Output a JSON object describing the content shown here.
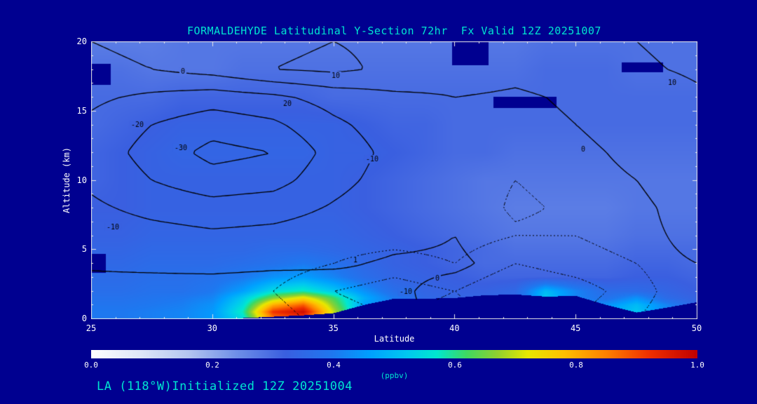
{
  "title": "FORMALDEHYDE Latitudinal Y-Section 72hr  Fx Valid 12Z 20251007",
  "caption": "LA (118°W)Initialized 12Z 20251004",
  "colors": {
    "background": "#000090",
    "title_text": "#00e5d0",
    "axis_text": "#ffffff",
    "contour_line": "#000000",
    "frame": "#e8e8e8"
  },
  "axes": {
    "x": {
      "label": "Latitude",
      "min": 25,
      "max": 50,
      "ticks": [
        25,
        30,
        35,
        40,
        45,
        50
      ]
    },
    "y": {
      "label": "Altitude (km)",
      "min": 0,
      "max": 20,
      "ticks": [
        0,
        5,
        10,
        15,
        20
      ]
    }
  },
  "colorbar": {
    "label": "(ppbv)",
    "ticks": [
      "0.0",
      "0.2",
      "0.4",
      "0.6",
      "0.8",
      "1.0"
    ],
    "min": 0,
    "max": 1,
    "stops": [
      [
        0.0,
        "#ffffff"
      ],
      [
        0.08,
        "#e0e8f8"
      ],
      [
        0.16,
        "#b4c6f0"
      ],
      [
        0.24,
        "#6f8fe8"
      ],
      [
        0.32,
        "#3a5fe0"
      ],
      [
        0.4,
        "#1e78f0"
      ],
      [
        0.46,
        "#00a0ff"
      ],
      [
        0.52,
        "#00c8f0"
      ],
      [
        0.57,
        "#00e8d0"
      ],
      [
        0.62,
        "#40d860"
      ],
      [
        0.67,
        "#90d030"
      ],
      [
        0.72,
        "#e8e800"
      ],
      [
        0.78,
        "#ffc000"
      ],
      [
        0.85,
        "#ff8000"
      ],
      [
        0.92,
        "#f03000"
      ],
      [
        1.0,
        "#c00000"
      ]
    ]
  },
  "chart_data": {
    "type": "heatmap",
    "title": "FORMALDEHYDE Latitudinal Y-Section 72hr  Fx Valid 12Z 20251007",
    "xlabel": "Latitude",
    "ylabel": "Altitude (km)",
    "xlim": [
      25,
      50
    ],
    "ylim": [
      0,
      20
    ],
    "fill_units": "ppbv",
    "fill_range": [
      0,
      1
    ],
    "fill": {
      "lats": [
        25,
        26.25,
        27.5,
        28.75,
        30,
        31.25,
        32.5,
        33.75,
        35,
        36.25,
        37.5,
        38.75,
        40,
        41.25,
        42.5,
        43.75,
        45,
        46.25,
        47.5,
        48.75,
        50
      ],
      "alts": [
        0,
        0.5,
        1,
        1.5,
        2,
        3,
        4,
        5,
        6,
        8,
        10,
        12,
        14,
        16,
        18,
        20
      ],
      "values": [
        [
          0.4,
          0.4,
          0.41,
          0.42,
          0.45,
          0.55,
          0.85,
          0.9,
          0.65,
          0.45,
          0.4,
          0.37,
          0.36,
          0.36,
          0.36,
          0.4,
          0.4,
          0.46,
          0.52,
          0.42,
          0.34
        ],
        [
          0.4,
          0.4,
          0.41,
          0.42,
          0.45,
          0.58,
          0.92,
          0.98,
          0.7,
          0.46,
          0.4,
          0.37,
          0.36,
          0.36,
          0.36,
          0.4,
          0.4,
          0.46,
          0.52,
          0.42,
          0.34
        ],
        [
          0.39,
          0.39,
          0.4,
          0.41,
          0.44,
          0.55,
          0.8,
          0.88,
          0.66,
          0.46,
          0.4,
          0.36,
          0.35,
          0.35,
          0.36,
          0.45,
          0.42,
          0.44,
          0.5,
          0.42,
          0.34
        ],
        [
          0.38,
          0.38,
          0.39,
          0.4,
          0.42,
          0.52,
          0.66,
          0.74,
          0.62,
          0.48,
          0.4,
          0.35,
          0.34,
          0.34,
          0.35,
          0.52,
          0.42,
          0.38,
          0.44,
          0.36,
          0.33
        ],
        [
          0.37,
          0.37,
          0.38,
          0.38,
          0.4,
          0.46,
          0.55,
          0.58,
          0.52,
          0.44,
          0.37,
          0.34,
          0.33,
          0.33,
          0.35,
          0.5,
          0.42,
          0.36,
          0.36,
          0.34,
          0.32
        ],
        [
          0.36,
          0.36,
          0.37,
          0.37,
          0.38,
          0.4,
          0.44,
          0.46,
          0.42,
          0.37,
          0.34,
          0.33,
          0.32,
          0.31,
          0.31,
          0.31,
          0.31,
          0.31,
          0.32,
          0.32,
          0.31
        ],
        [
          0.35,
          0.35,
          0.36,
          0.36,
          0.36,
          0.37,
          0.38,
          0.4,
          0.38,
          0.35,
          0.33,
          0.32,
          0.31,
          0.3,
          0.3,
          0.3,
          0.3,
          0.3,
          0.31,
          0.31,
          0.3
        ],
        [
          0.34,
          0.34,
          0.35,
          0.35,
          0.35,
          0.35,
          0.36,
          0.36,
          0.35,
          0.34,
          0.33,
          0.32,
          0.31,
          0.3,
          0.29,
          0.29,
          0.29,
          0.29,
          0.3,
          0.3,
          0.3
        ],
        [
          0.33,
          0.33,
          0.34,
          0.34,
          0.34,
          0.34,
          0.34,
          0.34,
          0.34,
          0.33,
          0.32,
          0.31,
          0.3,
          0.29,
          0.28,
          0.28,
          0.28,
          0.28,
          0.29,
          0.29,
          0.29
        ],
        [
          0.32,
          0.32,
          0.33,
          0.33,
          0.33,
          0.33,
          0.33,
          0.33,
          0.33,
          0.32,
          0.31,
          0.3,
          0.29,
          0.28,
          0.27,
          0.27,
          0.27,
          0.27,
          0.28,
          0.28,
          0.28
        ],
        [
          0.31,
          0.32,
          0.33,
          0.33,
          0.33,
          0.33,
          0.33,
          0.33,
          0.33,
          0.32,
          0.31,
          0.3,
          0.29,
          0.28,
          0.28,
          0.28,
          0.28,
          0.28,
          0.28,
          0.28,
          0.28
        ],
        [
          0.31,
          0.32,
          0.33,
          0.34,
          0.34,
          0.34,
          0.34,
          0.34,
          0.33,
          0.33,
          0.32,
          0.31,
          0.3,
          0.3,
          0.29,
          0.29,
          0.29,
          0.29,
          0.29,
          0.29,
          0.29
        ],
        [
          0.3,
          0.31,
          0.32,
          0.33,
          0.33,
          0.33,
          0.33,
          0.33,
          0.33,
          0.32,
          0.31,
          0.31,
          0.3,
          0.3,
          0.3,
          0.3,
          0.3,
          0.3,
          0.3,
          0.3,
          0.3
        ],
        [
          0.3,
          0.3,
          0.3,
          0.31,
          0.31,
          0.31,
          0.31,
          0.31,
          0.3,
          0.3,
          0.3,
          0.3,
          0.3,
          0.3,
          0.3,
          0.3,
          0.3,
          0.3,
          0.3,
          0.3,
          0.3
        ],
        [
          0.29,
          0.29,
          0.28,
          0.28,
          0.28,
          0.29,
          0.29,
          0.29,
          0.29,
          0.29,
          0.29,
          0.29,
          0.29,
          0.29,
          0.29,
          0.3,
          0.3,
          0.3,
          0.29,
          0.29,
          0.29
        ],
        [
          0.27,
          0.27,
          0.27,
          0.28,
          0.28,
          0.28,
          0.28,
          0.28,
          0.28,
          0.28,
          0.28,
          0.28,
          0.28,
          0.28,
          0.28,
          0.29,
          0.29,
          0.29,
          0.29,
          0.29,
          0.29
        ]
      ]
    },
    "terrain_alt_km": [
      0,
      0,
      0,
      0,
      0,
      0.05,
      0.15,
      0.25,
      0.4,
      1.0,
      1.45,
      1.45,
      1.5,
      1.7,
      1.75,
      1.6,
      1.65,
      1.0,
      0.45,
      0.8,
      1.2
    ],
    "missing_regions": [
      {
        "lat": [
          25,
          25.6
        ],
        "alt": [
          3.3,
          4.7
        ]
      },
      {
        "lat": [
          25,
          25.8
        ],
        "alt": [
          16.9,
          18.4
        ]
      },
      {
        "lat": [
          39.9,
          41.4
        ],
        "alt": [
          18.3,
          20
        ]
      },
      {
        "lat": [
          41.6,
          44.2
        ],
        "alt": [
          15.2,
          16.0
        ]
      },
      {
        "lat": [
          46.9,
          48.6
        ],
        "alt": [
          17.8,
          18.5
        ]
      }
    ],
    "overlay_contours": {
      "lats": [
        25,
        27.5,
        30,
        32.5,
        35,
        37.5,
        40,
        42.5,
        45,
        47.5,
        50
      ],
      "alts": [
        0,
        2,
        4,
        6,
        8,
        10,
        12,
        14,
        16,
        18,
        20
      ],
      "values": [
        [
          2,
          3,
          4,
          5,
          3,
          1,
          -1,
          -2,
          -2,
          -1,
          0
        ],
        [
          3,
          4,
          5,
          6,
          4,
          1,
          -2,
          -4,
          -3,
          -2,
          -1
        ],
        [
          -1,
          -2,
          -3,
          -2,
          -1,
          1,
          1,
          -2,
          -2,
          -1,
          0
        ],
        [
          -4,
          -6,
          -8,
          -7,
          -5,
          -2,
          0,
          -4,
          -3,
          -1,
          1
        ],
        [
          -8,
          -13,
          -16,
          -14,
          -9,
          -4,
          -1,
          -6,
          -4,
          -1,
          2
        ],
        [
          -12,
          -20,
          -26,
          -24,
          -13,
          -6,
          -2,
          -5,
          -3,
          0,
          3
        ],
        [
          -14,
          -24,
          -33,
          -30,
          -16,
          -7,
          -2,
          -4,
          -2,
          2,
          5
        ],
        [
          -12,
          -20,
          -26,
          -22,
          -12,
          -5,
          -1,
          -2,
          0,
          4,
          7
        ],
        [
          -8,
          -12,
          -15,
          -12,
          -6,
          -2,
          0,
          -1,
          1,
          6,
          9
        ],
        [
          -2,
          0,
          4,
          10,
          12,
          8,
          4,
          2,
          4,
          9,
          11
        ],
        [
          0,
          2,
          5,
          8,
          10,
          8,
          5,
          4,
          6,
          10,
          12
        ]
      ],
      "levels_solid": [
        -30,
        -20,
        -10,
        0,
        10,
        20
      ],
      "levels_dashed": [
        -5
      ]
    },
    "dotted_field": {
      "lats": [
        25,
        27.5,
        30,
        32.5,
        35,
        37.5,
        40,
        42.5,
        45,
        47.5,
        50
      ],
      "alts": [
        0,
        2,
        4,
        6,
        8,
        10,
        12,
        14,
        16,
        18,
        20
      ],
      "values": [
        [
          2,
          2,
          2,
          1,
          -1,
          -2,
          -1,
          -2,
          -2,
          0,
          2
        ],
        [
          2,
          2,
          2,
          0,
          -2,
          -3,
          -2,
          -4,
          -3,
          -1,
          2
        ],
        [
          2,
          2,
          2,
          1,
          0,
          -1,
          0,
          -2,
          -1,
          0,
          2
        ],
        [
          2,
          2,
          2,
          2,
          1,
          1,
          1,
          0,
          0,
          1,
          2
        ],
        [
          2,
          2,
          2,
          2,
          2,
          2,
          2,
          1,
          1,
          2,
          2
        ],
        [
          2,
          2,
          2,
          2,
          2,
          2,
          2,
          2,
          2,
          2,
          2
        ],
        [
          2,
          2,
          2,
          2,
          2,
          2,
          2,
          2,
          2,
          2,
          2
        ],
        [
          2,
          2,
          2,
          2,
          2,
          2,
          2,
          2,
          2,
          2,
          2
        ],
        [
          2,
          2,
          2,
          2,
          2,
          2,
          2,
          2,
          2,
          2,
          2
        ],
        [
          2,
          2,
          2,
          2,
          2,
          2,
          2,
          2,
          2,
          2,
          2
        ],
        [
          2,
          2,
          2,
          2,
          2,
          2,
          2,
          2,
          2,
          2,
          2
        ]
      ],
      "levels": [
        0,
        -2
      ]
    },
    "contour_labels": [
      {
        "text": "0",
        "lat": 28.8,
        "alt": 17.8
      },
      {
        "text": "10",
        "lat": 35.1,
        "alt": 17.5
      },
      {
        "text": "20",
        "lat": 33.1,
        "alt": 15.5
      },
      {
        "text": "-20",
        "lat": 26.9,
        "alt": 14.0
      },
      {
        "text": "-30",
        "lat": 28.7,
        "alt": 12.3
      },
      {
        "text": "-10",
        "lat": 36.6,
        "alt": 11.5
      },
      {
        "text": "-10",
        "lat": 25.9,
        "alt": 6.6
      },
      {
        "text": "10",
        "lat": 49.0,
        "alt": 17.0
      },
      {
        "text": "0",
        "lat": 45.3,
        "alt": 12.2
      },
      {
        "text": "1",
        "lat": 35.9,
        "alt": 4.2
      },
      {
        "text": "0",
        "lat": 39.3,
        "alt": 2.9
      },
      {
        "text": "-10",
        "lat": 38.0,
        "alt": 1.9
      }
    ]
  }
}
